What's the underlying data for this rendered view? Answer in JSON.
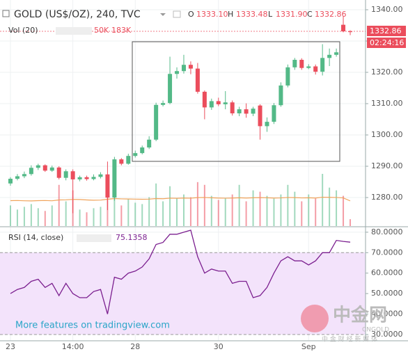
{
  "chart_data": {
    "type": "candlestick",
    "title": "GOLD (US$/OZ), 240, TVC",
    "ohlc_labels": {
      "o": "O",
      "open": "1333.10",
      "h": "H",
      "high": "1333.48",
      "l": "L",
      "low": "1331.90",
      "c": "C",
      "close": "1332.86"
    },
    "countdown": "02:24:16",
    "categories": [
      "23",
      null,
      null,
      null,
      null,
      null,
      null,
      null,
      null,
      "14:00",
      null,
      null,
      null,
      null,
      null,
      null,
      null,
      null,
      "28",
      null,
      null,
      null,
      null,
      null,
      null,
      null,
      null,
      null,
      null,
      null,
      "30",
      null,
      null,
      null,
      null,
      null,
      null,
      null,
      null,
      null,
      null,
      null,
      null,
      "Sep",
      null,
      null,
      null,
      null,
      null,
      null
    ],
    "open": [
      1284.5,
      1286.0,
      1286.8,
      1287.5,
      1289.5,
      1290.3,
      1288.6,
      1289.6,
      1286.3,
      1288.4,
      1285.8,
      1286.5,
      1285.9,
      1286.6,
      1287.4,
      1280.0,
      1292.2,
      1290.8,
      1293.3,
      1294.2,
      1296.0,
      1298.5,
      1309.6,
      1310.2,
      1319.5,
      1320.4,
      1322.4,
      1321.2,
      1313.8,
      1308.8,
      1310.8,
      1309.8,
      1310.4,
      1306.9,
      1308.2,
      1306.8,
      1309.4,
      1302.8,
      1304.2,
      1309.5,
      1315.8,
      1321.6,
      1324.0,
      1321.4,
      1321.9,
      1320.2,
      1324.6,
      1325.6,
      1335.2,
      1333.1
    ],
    "high": [
      1286.5,
      1287.5,
      1288.3,
      1290.3,
      1290.8,
      1290.6,
      1290.2,
      1290.0,
      1289.0,
      1289.0,
      1287.0,
      1287.0,
      1287.4,
      1288.1,
      1291.5,
      1293.0,
      1292.6,
      1294.0,
      1295.0,
      1296.6,
      1299.6,
      1310.3,
      1311.0,
      1325.0,
      1321.6,
      1325.6,
      1323.5,
      1323.0,
      1314.2,
      1311.6,
      1311.9,
      1314.0,
      1311.0,
      1309.0,
      1310.1,
      1309.0,
      1309.8,
      1305.6,
      1310.2,
      1316.8,
      1322.5,
      1324.6,
      1324.5,
      1322.6,
      1322.5,
      1329.0,
      1327.6,
      1327.6,
      1338.0,
      1333.48
    ],
    "low": [
      1283.8,
      1285.5,
      1286.2,
      1287.0,
      1288.8,
      1288.2,
      1288.2,
      1285.8,
      1285.5,
      1275.0,
      1285.2,
      1285.4,
      1285.5,
      1286.1,
      1276.0,
      1279.0,
      1290.3,
      1290.5,
      1292.8,
      1293.8,
      1295.5,
      1298.0,
      1309.1,
      1309.8,
      1318.0,
      1319.6,
      1319.4,
      1313.2,
      1305.0,
      1308.0,
      1309.2,
      1308.2,
      1306.2,
      1306.0,
      1305.5,
      1306.0,
      1298.5,
      1301.0,
      1303.5,
      1309.0,
      1315.2,
      1320.8,
      1320.8,
      1321.0,
      1319.3,
      1319.0,
      1322.0,
      1325.0,
      1332.8,
      1331.9
    ],
    "close": [
      1286.0,
      1286.8,
      1287.5,
      1289.5,
      1290.3,
      1288.6,
      1289.6,
      1286.3,
      1288.4,
      1285.8,
      1286.5,
      1285.9,
      1286.6,
      1287.4,
      1280.0,
      1292.2,
      1290.8,
      1293.3,
      1294.2,
      1296.0,
      1298.5,
      1309.6,
      1310.2,
      1319.5,
      1320.4,
      1322.4,
      1321.2,
      1313.8,
      1308.8,
      1310.8,
      1309.8,
      1310.4,
      1306.9,
      1308.2,
      1306.8,
      1308.4,
      1302.8,
      1304.2,
      1309.5,
      1315.8,
      1321.6,
      1324.0,
      1321.4,
      1321.9,
      1320.2,
      1324.6,
      1325.6,
      1326.4,
      1333.1,
      1332.86
    ],
    "up_color": "#53b987",
    "down_color": "#eb4d5c",
    "ylim": [
      1270.9,
      1342.0
    ],
    "yticks": [
      {
        "value": 1280,
        "label": "1280.00"
      },
      {
        "value": 1290,
        "label": "1290.00"
      },
      {
        "value": 1300,
        "label": "1300.00"
      },
      {
        "value": 1310,
        "label": "1310.00"
      },
      {
        "value": 1320,
        "label": "1320.00"
      },
      {
        "value": 1330,
        "label": "1330.00"
      },
      {
        "value": 1340,
        "label": "1340.00"
      }
    ],
    "grid": true,
    "volume": {
      "title": "Vol (20)",
      "last_label": "50K",
      "ma_label": "183K",
      "ma_color": "#f0a35a",
      "values": [
        150000,
        120000,
        140000,
        160000,
        130000,
        110000,
        150000,
        300000,
        180000,
        260000,
        120000,
        100000,
        130000,
        140000,
        330000,
        280000,
        150000,
        200000,
        170000,
        160000,
        210000,
        310000,
        180000,
        290000,
        200000,
        230000,
        210000,
        320000,
        300000,
        220000,
        190000,
        200000,
        230000,
        300000,
        180000,
        260000,
        250000,
        220000,
        200000,
        230000,
        300000,
        250000,
        180000,
        230000,
        200000,
        380000,
        280000,
        260000,
        220000,
        50000
      ],
      "ma": [
        185000,
        186000,
        184000,
        183000,
        185000,
        186000,
        184000,
        190000,
        191000,
        194000,
        193000,
        190000,
        188000,
        189000,
        195000,
        200000,
        198000,
        197000,
        196000,
        195000,
        196000,
        200000,
        199000,
        203000,
        202000,
        204000,
        203000,
        207000,
        208000,
        206000,
        204000,
        203000,
        204000,
        206000,
        204000,
        206000,
        207000,
        206000,
        204000,
        205000,
        208000,
        207000,
        205000,
        206000,
        204000,
        210000,
        209000,
        208000,
        205000,
        183000
      ]
    },
    "rsi": {
      "title": "RSI (14, close)",
      "last_label": "75.1358",
      "color": "#7b1f8f",
      "band_color": "#f3e3fb",
      "ylim": [
        27.6,
        82.0
      ],
      "band": [
        30,
        70
      ],
      "yticks": [
        {
          "value": 30,
          "label": "30.0000"
        },
        {
          "value": 40,
          "label": "40.0000"
        },
        {
          "value": 50,
          "label": "50.0000"
        },
        {
          "value": 60,
          "label": "60.0000"
        },
        {
          "value": 70,
          "label": "70.0000"
        },
        {
          "value": 80,
          "label": "80.0000"
        }
      ],
      "values": [
        50,
        52,
        53,
        56,
        57,
        53,
        55,
        49,
        55,
        50,
        48,
        48,
        51,
        52,
        40,
        58,
        57,
        60,
        61,
        63,
        67,
        74,
        75,
        79,
        79,
        80,
        81,
        68,
        60,
        62,
        61,
        61,
        55,
        56,
        56,
        48,
        49,
        53,
        60,
        66,
        68,
        66,
        66,
        64,
        66,
        70,
        70,
        76,
        75.5,
        75.1358
      ]
    },
    "promo": "More features on tradingview.com",
    "watermark": {
      "name": "中金网",
      "brand": "CNGOLD",
      "slogan": "中 金 财 经 新 媒 体"
    }
  }
}
